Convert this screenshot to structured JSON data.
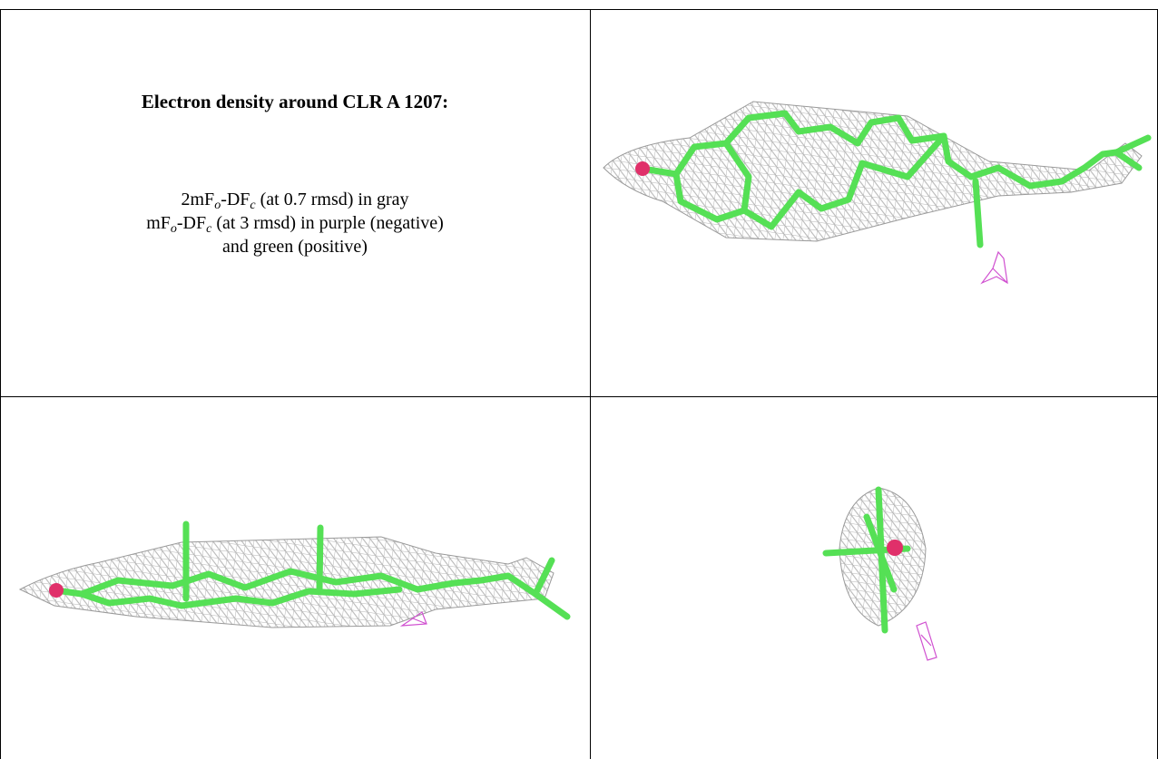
{
  "caption": {
    "title": "Electron density around CLR A 1207:",
    "lines": [
      [
        "2mF",
        "o",
        "-DF",
        "c",
        " (at 0.7 rmsd) in gray"
      ],
      [
        "mF",
        "o",
        "-DF",
        "c",
        " (at 3 rmsd) in purple (negative)"
      ],
      [
        "and green (positive)"
      ]
    ]
  }
}
